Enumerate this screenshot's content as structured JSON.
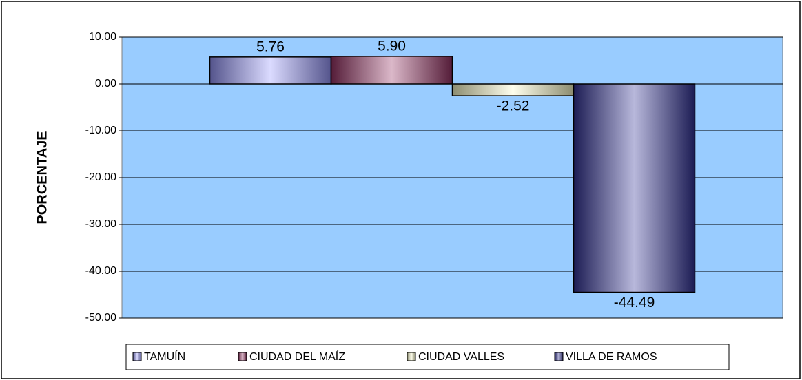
{
  "chart_data": {
    "type": "bar",
    "y_label": "PORCENTAJE",
    "series": [
      {
        "name": "TAMUÍN",
        "color": "#9999ff",
        "values": [
          5.76
        ]
      },
      {
        "name": "CIUDAD DEL MAÍZ",
        "color": "#993366",
        "values": [
          5.9
        ],
        "value_labels": [
          "5.90"
        ]
      },
      {
        "name": "CIUDAD VALLES",
        "color": "#ffffcc",
        "values": [
          -2.52
        ]
      },
      {
        "name": "VILLA DE RAMOS",
        "color": "#333399",
        "values": [
          -44.49
        ]
      }
    ],
    "ylim": [
      -50,
      10
    ],
    "yticks": [
      {
        "value": -50,
        "label": "-50.00"
      },
      {
        "value": -40,
        "label": "-40.00"
      },
      {
        "value": -30,
        "label": "-30.00"
      },
      {
        "value": -20,
        "label": "-20.00"
      },
      {
        "value": -10,
        "label": "-10.00"
      },
      {
        "value": 0,
        "label": "0.00"
      },
      {
        "value": 10,
        "label": "10.00"
      }
    ],
    "grid": true,
    "legend": "bottom"
  }
}
